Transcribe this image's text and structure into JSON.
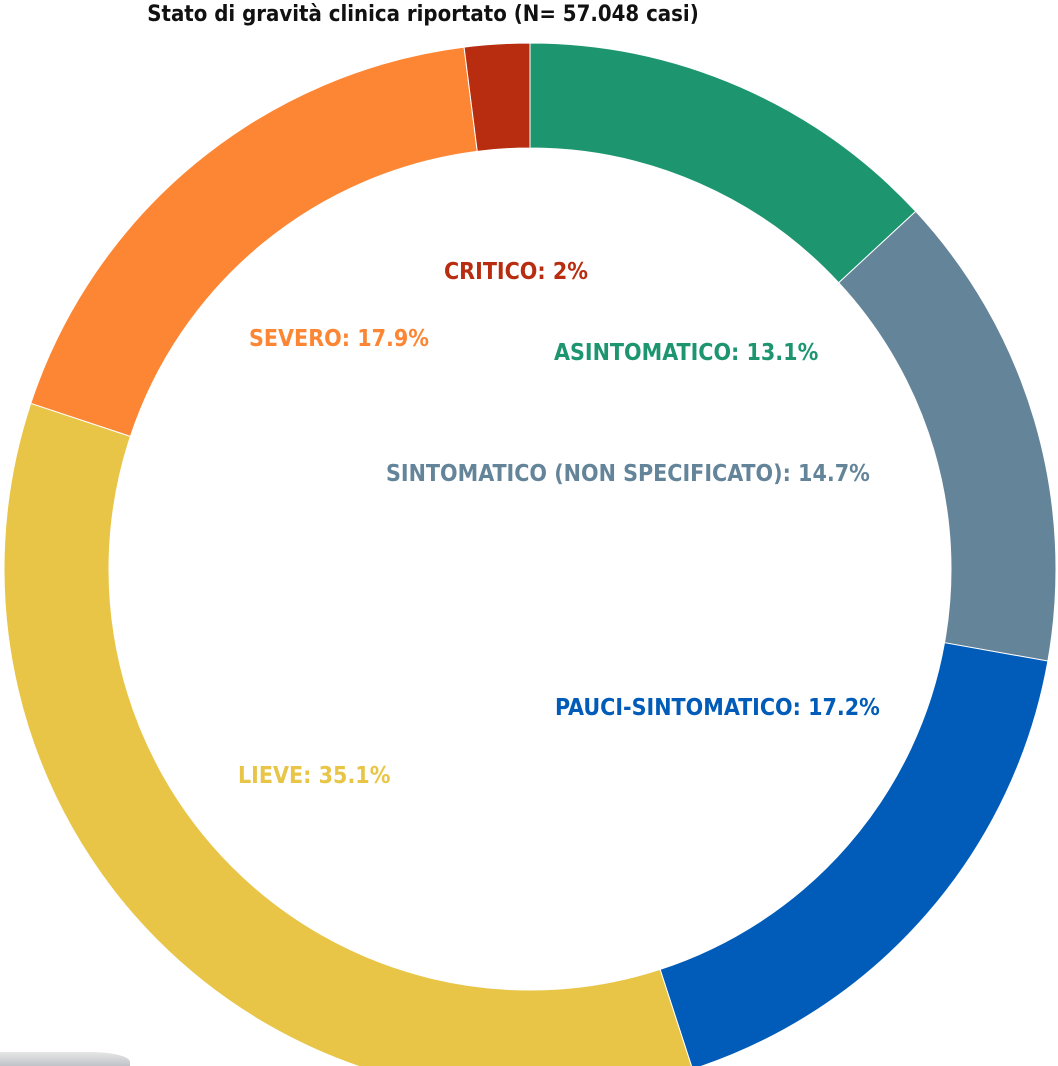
{
  "chart_data": {
    "type": "pie",
    "title": "Stato di gravità clinica riportato (N= 57.048 casi)",
    "slices": [
      {
        "name": "ASINTOMATICO",
        "value": 13.1,
        "label": "ASINTOMATICO: 13.1%",
        "color": "#1d966f"
      },
      {
        "name": "SINTOMATICO (NON SPECIFICATO)",
        "value": 14.7,
        "label": "SINTOMATICO (NON SPECIFICATO): 14.7%",
        "color": "#64849a"
      },
      {
        "name": "PAUCI-SINTOMATICO",
        "value": 17.2,
        "label": "PAUCI-SINTOMATICO: 17.2%",
        "color": "#005cb8"
      },
      {
        "name": "LIEVE",
        "value": 35.1,
        "label": "LIEVE: 35.1%",
        "color": "#e8c547"
      },
      {
        "name": "SEVERO",
        "value": 17.9,
        "label": "SEVERO: 17.9%",
        "color": "#fc8634"
      },
      {
        "name": "CRITICO",
        "value": 2.0,
        "label": "CRITICO: 2%",
        "color": "#b82d0f"
      }
    ],
    "legend": "none",
    "grid": false
  }
}
